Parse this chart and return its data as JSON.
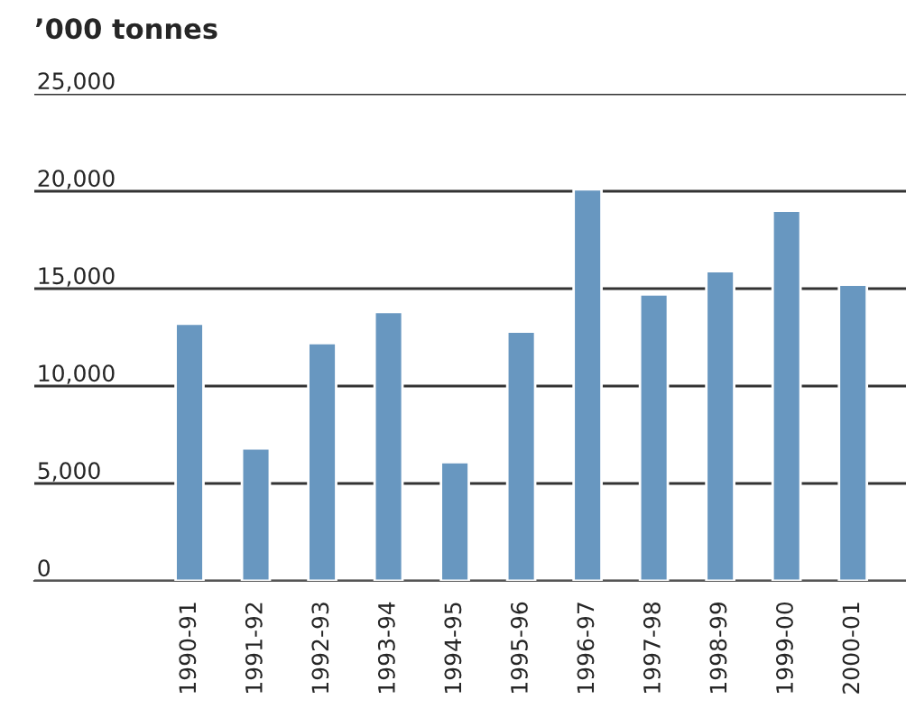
{
  "chart_data": {
    "type": "bar",
    "title": "’000 tonnes",
    "categories": [
      "1990-91",
      "1991-92",
      "1992-93",
      "1993-94",
      "1994-95",
      "1995-96",
      "1996-97",
      "1997-98",
      "1998-99",
      "1999-00",
      "2000-01"
    ],
    "values": [
      13200,
      6800,
      12200,
      13800,
      6100,
      12800,
      20100,
      14700,
      15900,
      19000,
      15200
    ],
    "color": "#6897c0",
    "ylim": [
      0,
      25000
    ],
    "yticks": [
      {
        "value": 0,
        "label": "0"
      },
      {
        "value": 5000,
        "label": "5,000"
      },
      {
        "value": 10000,
        "label": "10,000"
      },
      {
        "value": 15000,
        "label": "15,000"
      },
      {
        "value": 20000,
        "label": "20,000"
      },
      {
        "value": 25000,
        "label": "25,000"
      }
    ],
    "grid": "y"
  }
}
